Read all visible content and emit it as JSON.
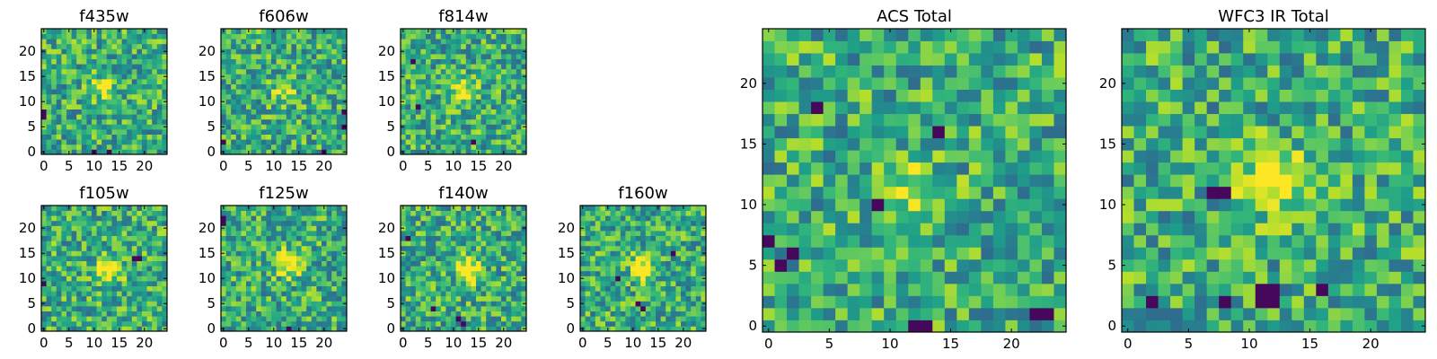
{
  "chart_data": [
    {
      "type": "heatmap",
      "title": "f435w",
      "size": 25,
      "seed": 11,
      "bright_center": [
        12,
        13
      ],
      "bright_amp": 0.3,
      "dark_pixels": [
        [
          0,
          7
        ],
        [
          0,
          8
        ],
        [
          10,
          0
        ],
        [
          13,
          0
        ]
      ],
      "xticks": [
        0,
        5,
        10,
        15,
        20
      ],
      "yticks": [
        0,
        5,
        10,
        15,
        20
      ],
      "xlim": [
        -0.5,
        24.5
      ],
      "ylim": [
        -0.5,
        24.5
      ],
      "colormap": "viridis"
    },
    {
      "type": "heatmap",
      "title": "f606w",
      "size": 25,
      "seed": 23,
      "bright_center": [
        12,
        12
      ],
      "bright_amp": 0.3,
      "dark_pixels": [
        [
          0,
          2
        ],
        [
          24,
          5
        ],
        [
          24,
          8
        ],
        [
          20,
          0
        ]
      ],
      "xticks": [
        0,
        5,
        10,
        15,
        20
      ],
      "yticks": [
        0,
        5,
        10,
        15,
        20
      ],
      "xlim": [
        -0.5,
        24.5
      ],
      "ylim": [
        -0.5,
        24.5
      ],
      "colormap": "viridis"
    },
    {
      "type": "heatmap",
      "title": "f814w",
      "size": 25,
      "seed": 37,
      "bright_center": [
        12,
        12
      ],
      "bright_amp": 0.4,
      "dark_pixels": [
        [
          3,
          9
        ],
        [
          2,
          18
        ],
        [
          14,
          2
        ]
      ],
      "xticks": [
        0,
        5,
        10,
        15,
        20
      ],
      "yticks": [
        0,
        5,
        10,
        15,
        20
      ],
      "xlim": [
        -0.5,
        24.5
      ],
      "ylim": [
        -0.5,
        24.5
      ],
      "colormap": "viridis"
    },
    {
      "type": "heatmap",
      "title": "f105w",
      "size": 25,
      "seed": 41,
      "bright_center": [
        13,
        12
      ],
      "bright_amp": 0.5,
      "dark_pixels": [
        [
          18,
          14
        ],
        [
          19,
          14
        ],
        [
          0,
          9
        ]
      ],
      "xticks": [
        0,
        5,
        10,
        15,
        20
      ],
      "yticks": [
        0,
        5,
        10,
        15,
        20
      ],
      "xlim": [
        -0.5,
        24.5
      ],
      "ylim": [
        -0.5,
        24.5
      ],
      "colormap": "viridis"
    },
    {
      "type": "heatmap",
      "title": "f125w",
      "size": 25,
      "seed": 53,
      "bright_center": [
        13,
        13
      ],
      "bright_amp": 0.5,
      "dark_pixels": [
        [
          0,
          22
        ],
        [
          0,
          21
        ],
        [
          13,
          0
        ]
      ],
      "xticks": [
        0,
        5,
        10,
        15,
        20
      ],
      "yticks": [
        0,
        5,
        10,
        15,
        20
      ],
      "xlim": [
        -0.5,
        24.5
      ],
      "ylim": [
        -0.5,
        24.5
      ],
      "colormap": "viridis"
    },
    {
      "type": "heatmap",
      "title": "f140w",
      "size": 25,
      "seed": 67,
      "bright_center": [
        13,
        12
      ],
      "bright_amp": 0.5,
      "dark_pixels": [
        [
          12,
          1
        ],
        [
          11,
          2
        ],
        [
          6,
          4
        ],
        [
          1,
          18
        ]
      ],
      "xticks": [
        0,
        5,
        10,
        15,
        20
      ],
      "yticks": [
        0,
        5,
        10,
        15,
        20
      ],
      "xlim": [
        -0.5,
        24.5
      ],
      "ylim": [
        -0.5,
        24.5
      ],
      "colormap": "viridis"
    },
    {
      "type": "heatmap",
      "title": "f160w",
      "size": 25,
      "seed": 71,
      "bright_center": [
        12,
        12
      ],
      "bright_amp": 0.5,
      "dark_pixels": [
        [
          12,
          4
        ],
        [
          11,
          5
        ],
        [
          7,
          10
        ],
        [
          18,
          15
        ]
      ],
      "xticks": [
        0,
        5,
        10,
        15,
        20
      ],
      "yticks": [
        0,
        5,
        10,
        15,
        20
      ],
      "xlim": [
        -0.5,
        24.5
      ],
      "ylim": [
        -0.5,
        24.5
      ],
      "colormap": "viridis"
    },
    {
      "type": "heatmap",
      "title": "ACS Total",
      "size": 25,
      "seed": 83,
      "bright_center": [
        12,
        11
      ],
      "bright_amp": 0.35,
      "dark_pixels": [
        [
          23,
          1
        ],
        [
          22,
          1
        ],
        [
          12,
          0
        ],
        [
          13,
          0
        ],
        [
          9,
          10
        ],
        [
          14,
          16
        ],
        [
          4,
          18
        ],
        [
          0,
          7
        ],
        [
          2,
          6
        ],
        [
          1,
          5
        ]
      ],
      "xticks": [
        0,
        5,
        10,
        15,
        20
      ],
      "yticks": [
        0,
        5,
        10,
        15,
        20
      ],
      "xlim": [
        -0.5,
        24.5
      ],
      "ylim": [
        -0.5,
        24.5
      ],
      "colormap": "viridis"
    },
    {
      "type": "heatmap",
      "title": "WFC3 IR Total",
      "size": 25,
      "seed": 97,
      "bright_center": [
        12,
        12
      ],
      "bright_amp": 0.55,
      "dark_pixels": [
        [
          11,
          2
        ],
        [
          12,
          3
        ],
        [
          11,
          3
        ],
        [
          12,
          2
        ],
        [
          7,
          11
        ],
        [
          8,
          11
        ],
        [
          16,
          3
        ],
        [
          8,
          2
        ],
        [
          2,
          2
        ]
      ],
      "xticks": [
        0,
        5,
        10,
        15,
        20
      ],
      "yticks": [
        0,
        5,
        10,
        15,
        20
      ],
      "xlim": [
        -0.5,
        24.5
      ],
      "ylim": [
        -0.5,
        24.5
      ],
      "colormap": "viridis"
    }
  ]
}
